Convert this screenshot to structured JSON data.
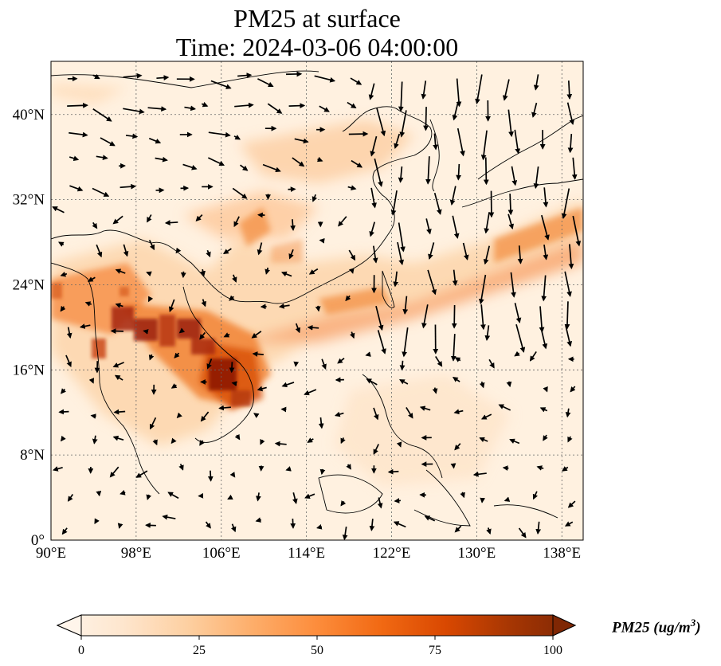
{
  "title": "PM25 at surface",
  "subtitle": "Time: 2024-03-06 04:00:00",
  "map": {
    "extent": {
      "lon_min": 90,
      "lon_max": 140,
      "lat_min": 0,
      "lat_max": 45
    },
    "gridlines": "dotted",
    "lon_ticks": [
      {
        "value": 90,
        "label": "90°E"
      },
      {
        "value": 98,
        "label": "98°E"
      },
      {
        "value": 106,
        "label": "106°E"
      },
      {
        "value": 114,
        "label": "114°E"
      },
      {
        "value": 122,
        "label": "122°E"
      },
      {
        "value": 130,
        "label": "130°E"
      },
      {
        "value": 138,
        "label": "138°E"
      }
    ],
    "lat_ticks": [
      {
        "value": 0,
        "label": "0°"
      },
      {
        "value": 8,
        "label": "8°N"
      },
      {
        "value": 16,
        "label": "16°N"
      },
      {
        "value": 24,
        "label": "24°N"
      },
      {
        "value": 32,
        "label": "32°N"
      },
      {
        "value": 40,
        "label": "40°N"
      }
    ]
  },
  "colorbar": {
    "label_main": "PM25 (ug/m",
    "label_sup": "3",
    "label_end": ")",
    "min": 0,
    "max": 100,
    "ticks": [
      "0",
      "25",
      "50",
      "75",
      "100"
    ],
    "colors": [
      "#fff5eb",
      "#fee6ce",
      "#fdd0a2",
      "#fdae6b",
      "#fd8d3c",
      "#f16913",
      "#d94801",
      "#a63603",
      "#7f2704"
    ]
  }
}
